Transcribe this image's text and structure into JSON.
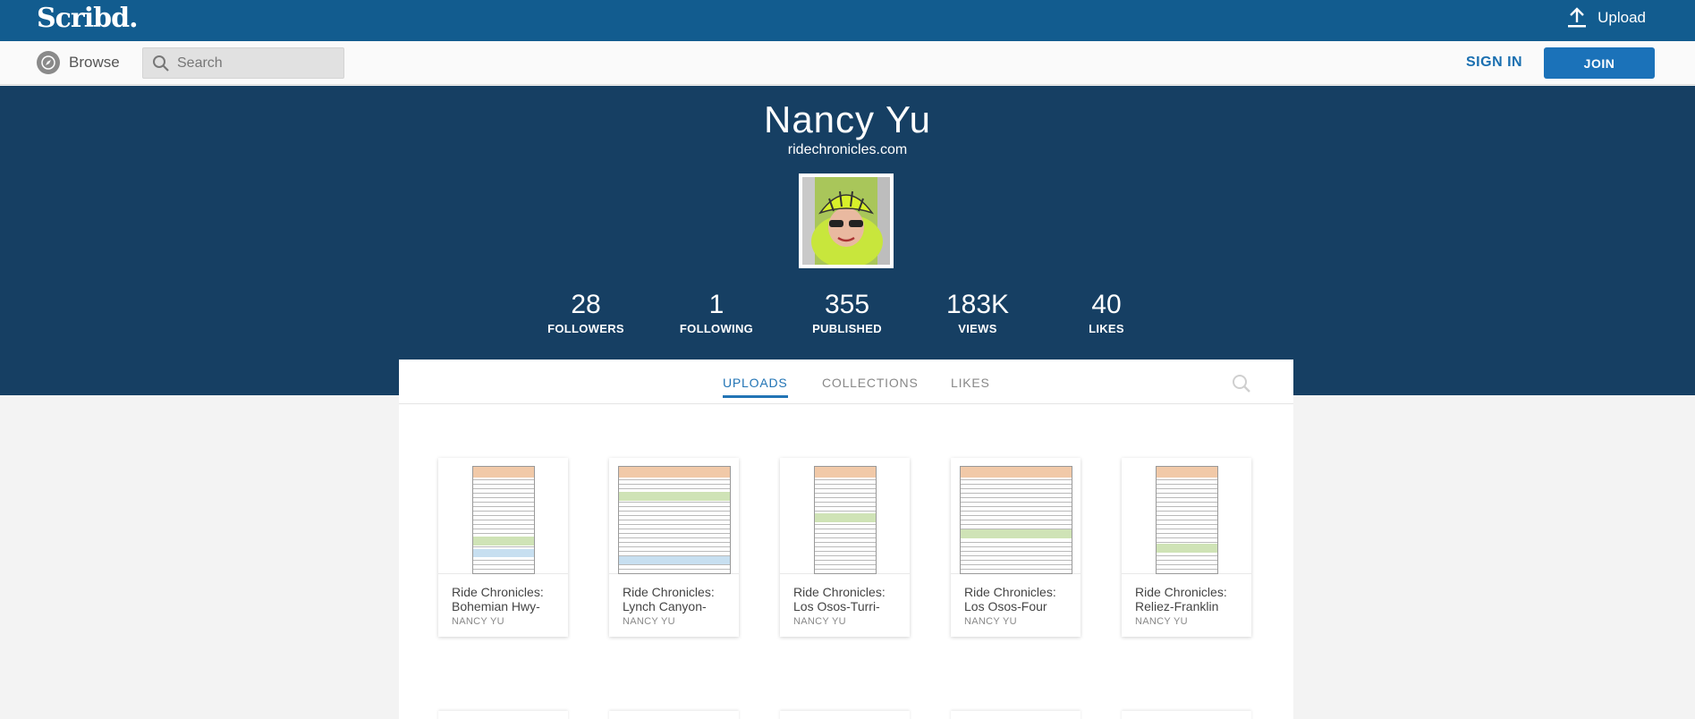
{
  "topbar": {
    "logo": "Scribd.",
    "upload_label": "Upload"
  },
  "navbar": {
    "browse_label": "Browse",
    "search_placeholder": "Search",
    "signin_label": "SIGN IN",
    "join_label": "JOIN"
  },
  "profile": {
    "name": "Nancy Yu",
    "website": "ridechronicles.com",
    "stats": [
      {
        "value": "28",
        "label": "FOLLOWERS"
      },
      {
        "value": "1",
        "label": "FOLLOWING"
      },
      {
        "value": "355",
        "label": "PUBLISHED"
      },
      {
        "value": "183K",
        "label": "VIEWS"
      },
      {
        "value": "40",
        "label": "LIKES"
      }
    ]
  },
  "tabs": [
    {
      "label": "UPLOADS",
      "active": true
    },
    {
      "label": "COLLECTIONS",
      "active": false
    },
    {
      "label": "LIKES",
      "active": false
    }
  ],
  "documents": [
    {
      "title_line1": "Ride Chronicles:",
      "title_line2": "Bohemian Hwy-",
      "author": "NANCY YU"
    },
    {
      "title_line1": "Ride Chronicles:",
      "title_line2": "Lynch Canyon-",
      "author": "NANCY YU"
    },
    {
      "title_line1": "Ride Chronicles:",
      "title_line2": "Los Osos-Turri-",
      "author": "NANCY YU"
    },
    {
      "title_line1": "Ride Chronicles:",
      "title_line2": "Los Osos-Four",
      "author": "NANCY YU"
    },
    {
      "title_line1": "Ride Chronicles:",
      "title_line2": "Reliez-Franklin",
      "author": "NANCY YU"
    }
  ],
  "colors": {
    "topbar": "#125c8f",
    "hero": "#163f63",
    "accent": "#2274b5",
    "join_button": "#1b72b9"
  }
}
